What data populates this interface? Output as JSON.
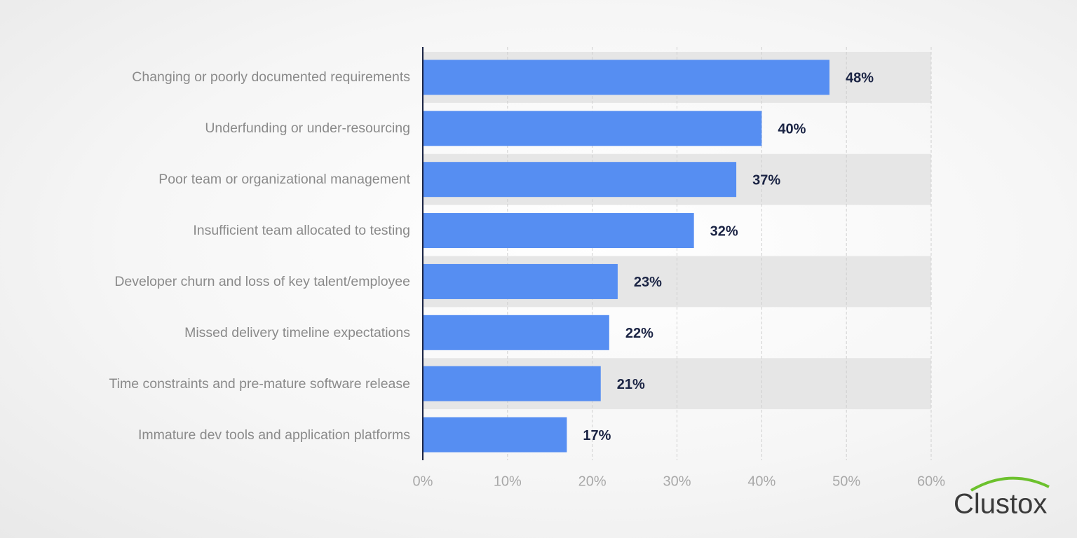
{
  "chart_data": {
    "type": "barh",
    "categories": [
      "Changing or poorly documented requirements",
      "Underfunding or under-resourcing",
      "Poor team or organizational management",
      "Insufficient team allocated to testing",
      "Developer churn and loss of key talent/employee",
      "Missed delivery timeline expectations",
      "Time constraints and pre-mature software release",
      "Immature dev tools and application platforms"
    ],
    "values": [
      48,
      40,
      37,
      32,
      23,
      22,
      21,
      17
    ],
    "value_labels": [
      "48%",
      "40%",
      "37%",
      "32%",
      "23%",
      "22%",
      "21%",
      "17%"
    ],
    "color": "#568ef2",
    "xlim": [
      0,
      60
    ],
    "xticks": [
      {
        "value": 0,
        "label": "0%"
      },
      {
        "value": 10,
        "label": "10%"
      },
      {
        "value": 20,
        "label": "20%"
      },
      {
        "value": 30,
        "label": "30%"
      },
      {
        "value": 40,
        "label": "40%"
      },
      {
        "value": 50,
        "label": "50%"
      },
      {
        "value": 60,
        "label": "60%"
      }
    ],
    "grid": true,
    "striped_rows": true
  },
  "brand": "Clustox"
}
